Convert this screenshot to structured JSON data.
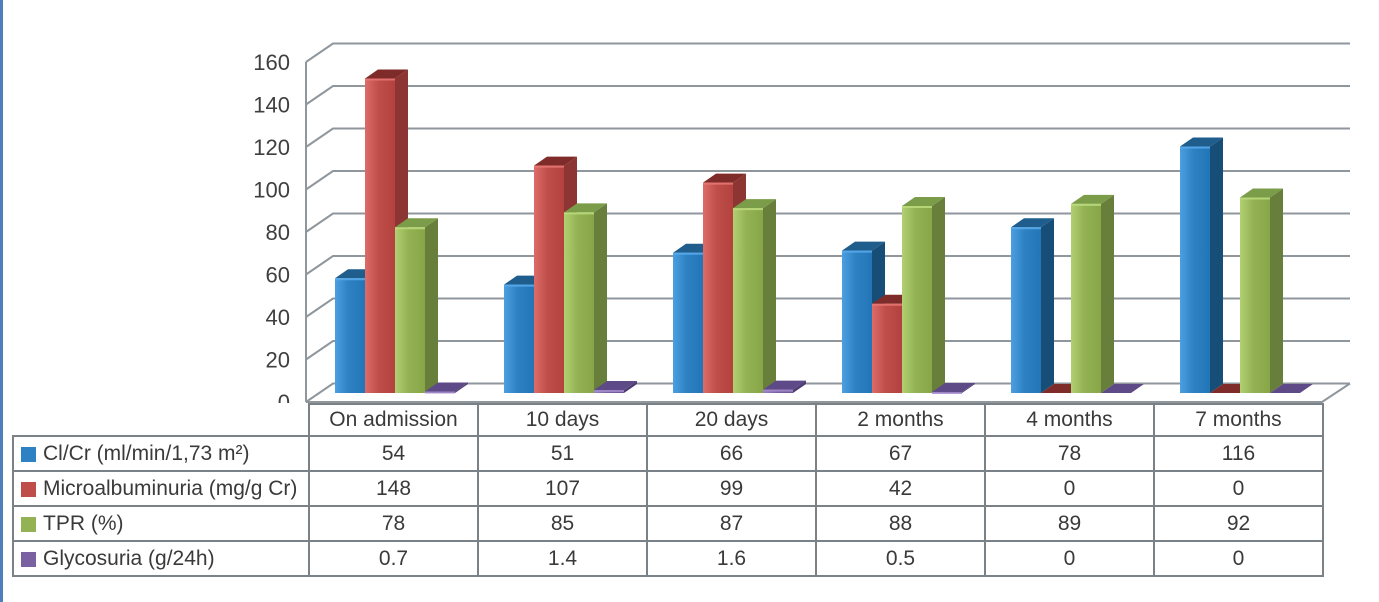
{
  "page": {
    "left_rule_color": "#4f7fba",
    "background": "#ffffff",
    "grid_color": "#8f969c",
    "table_border_color": "#7b8287",
    "text_color": "#3a3a3a"
  },
  "chart_data": {
    "type": "bar",
    "projection": "3d-oblique-columns",
    "title": "",
    "xlabel": "",
    "ylabel": "",
    "grid": true,
    "legend_position": "table-left",
    "categories": [
      "On admission",
      "10 days",
      "20 days",
      "2 months",
      "4 months",
      "7 months"
    ],
    "series": [
      {
        "name": "Cl/Cr (ml/min/1,73 m²)",
        "values": [
          54,
          51,
          66,
          67,
          78,
          116
        ],
        "color": "#2e82c3",
        "color_side": "#174e78",
        "color_top": "#1f5d8d"
      },
      {
        "name": "Microalbuminuria (mg/g Cr)",
        "values": [
          148,
          107,
          99,
          42,
          0,
          0
        ],
        "color": "#bf4e4b",
        "color_side": "#8c3532",
        "color_top": "#7f2b29"
      },
      {
        "name": "TPR (%)",
        "values": [
          78,
          85,
          87,
          88,
          89,
          92
        ],
        "color": "#93b254",
        "color_side": "#687f3c",
        "color_top": "#7b9c48"
      },
      {
        "name": "Glycosuria (g/24h)",
        "values": [
          0.7,
          1.4,
          1.6,
          0.5,
          0,
          0
        ],
        "color": "#7a62a2",
        "color_side": "#4e3c72",
        "color_top": "#5e4a86"
      }
    ],
    "yaxis": {
      "min": 0,
      "max": 160,
      "step": 20,
      "tick_labels": [
        "0",
        "20",
        "40",
        "60",
        "80",
        "100",
        "120",
        "140",
        "160"
      ]
    }
  }
}
